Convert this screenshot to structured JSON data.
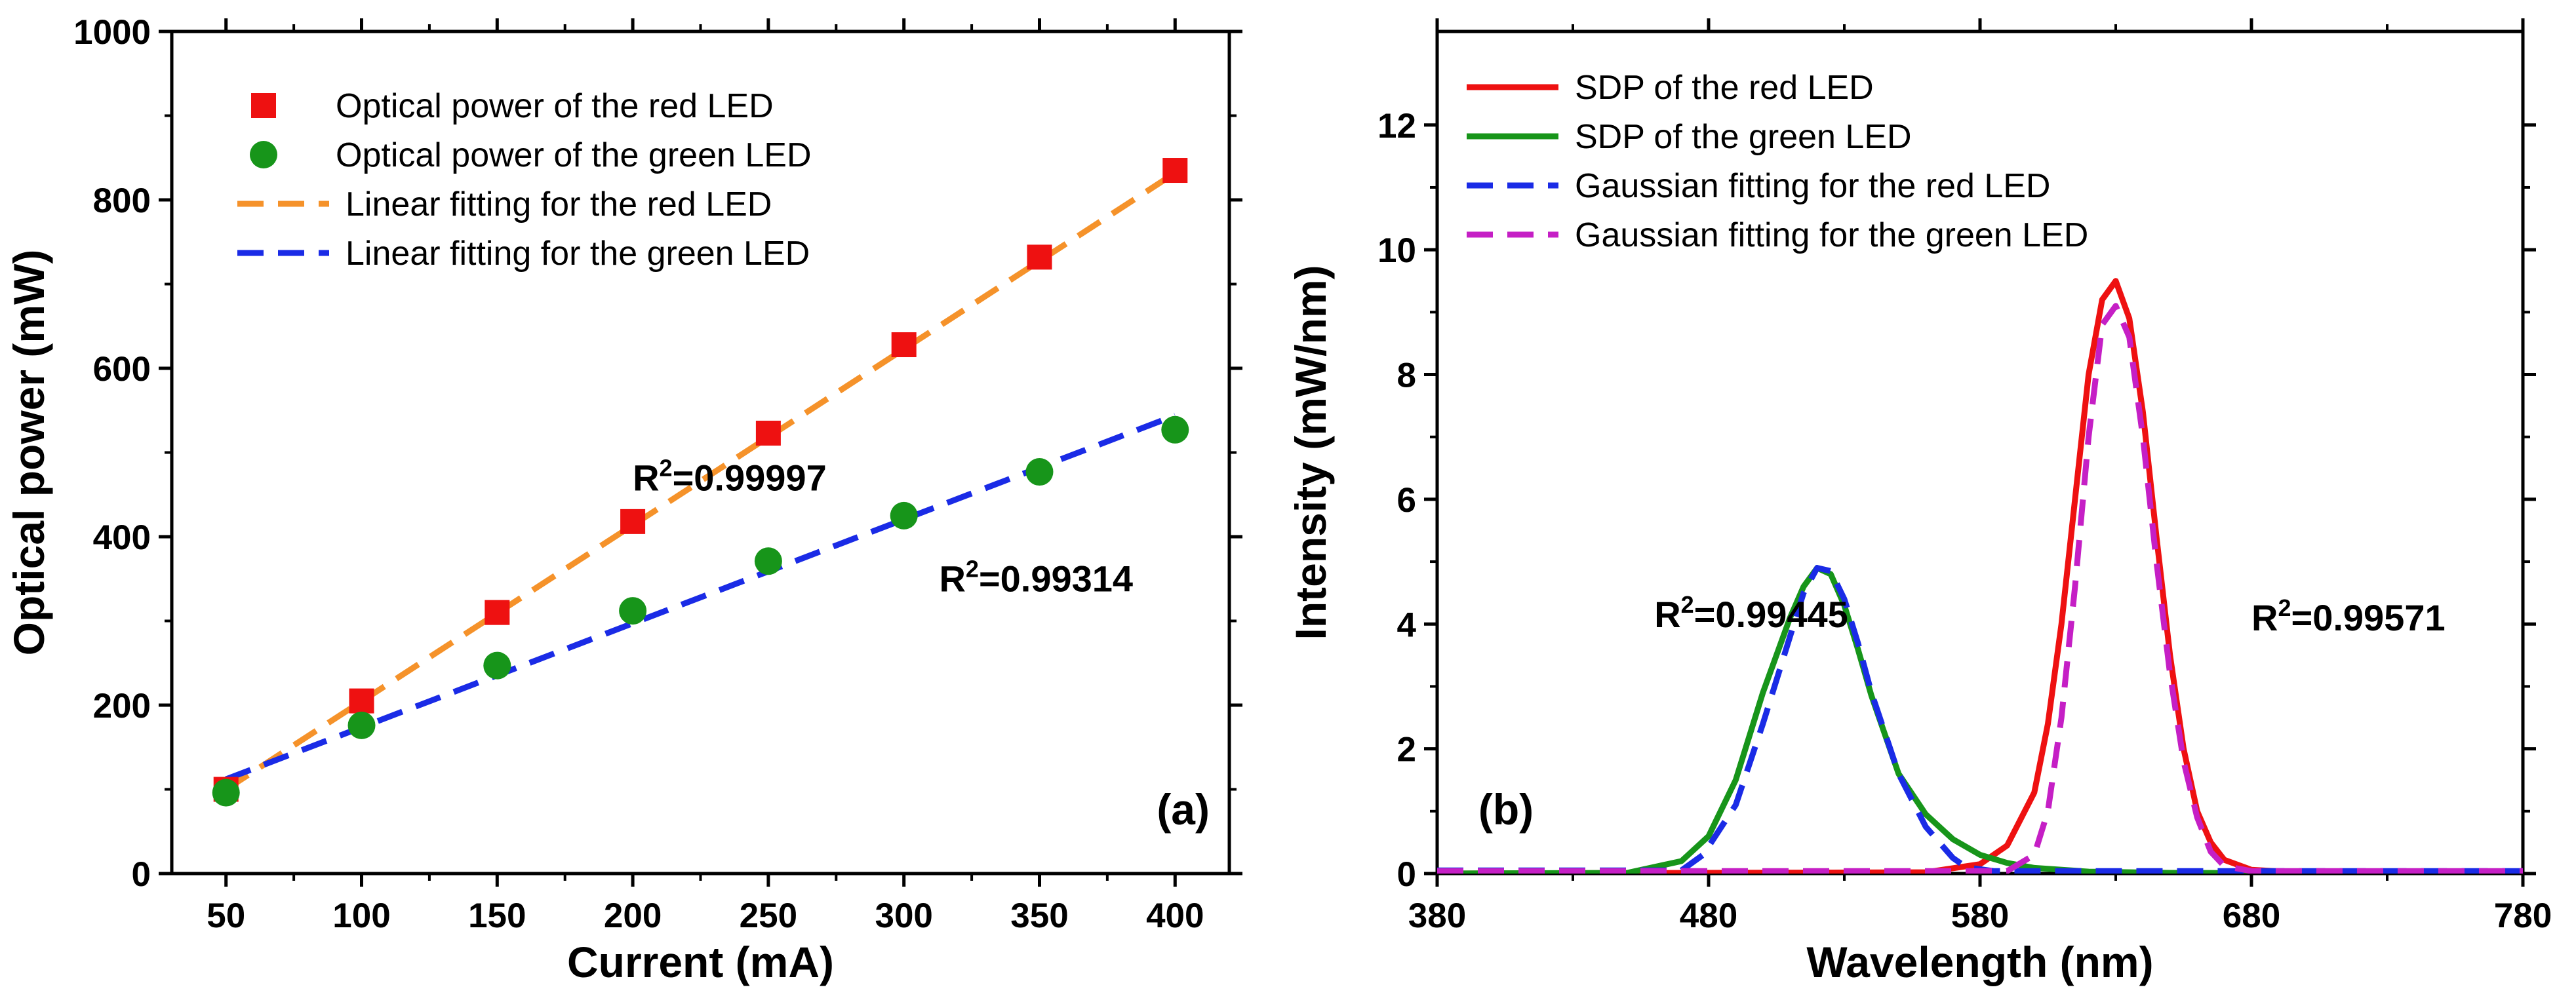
{
  "chart_data": [
    {
      "type": "scatter",
      "panel_label": "(a)",
      "xlabel": "Current (mA)",
      "ylabel": "Optical power (mW)",
      "xlim": [
        30,
        420
      ],
      "ylim": [
        0,
        1000
      ],
      "xticks": [
        50,
        100,
        150,
        200,
        250,
        300,
        350,
        400
      ],
      "yticks": [
        0,
        200,
        400,
        600,
        800,
        1000
      ],
      "legend_position": "top-left",
      "series": [
        {
          "name": "Optical power of the red LED",
          "marker": "square",
          "color": "#ee1111",
          "x": [
            50,
            100,
            150,
            200,
            250,
            300,
            350,
            400
          ],
          "y": [
            100,
            205,
            310,
            418,
            523,
            628,
            732,
            835
          ]
        },
        {
          "name": "Optical power of the green LED",
          "marker": "circle",
          "color": "#17951a",
          "x": [
            50,
            100,
            150,
            200,
            250,
            300,
            350,
            400
          ],
          "y": [
            96,
            176,
            247,
            312,
            371,
            425,
            477,
            527
          ]
        },
        {
          "name": "Linear fitting for the red LED",
          "line": "dashed",
          "color": "#f5922a",
          "x": [
            50,
            400
          ],
          "y": [
            100,
            832
          ]
        },
        {
          "name": "Linear fitting for the green LED",
          "line": "dashed",
          "color": "#1a2be6",
          "x": [
            50,
            400
          ],
          "y": [
            112,
            544
          ]
        }
      ],
      "annotations": [
        {
          "base": "R",
          "sup": "2",
          "value": "=0.99997",
          "x": 200,
          "y": 455
        },
        {
          "base": "R",
          "sup": "2",
          "value": "=0.99314",
          "x": 313,
          "y": 335
        }
      ]
    },
    {
      "type": "line",
      "panel_label": "(b)",
      "xlabel": "Wavelength (nm)",
      "ylabel": "Intensity (mW/nm)",
      "xlim": [
        380,
        780
      ],
      "ylim": [
        0,
        13.5
      ],
      "xticks": [
        380,
        480,
        580,
        680,
        780
      ],
      "yticks": [
        0,
        2,
        4,
        6,
        8,
        10,
        12
      ],
      "legend_position": "top-left",
      "series": [
        {
          "name": "SDP of the red LED",
          "line": "solid",
          "color": "#ee1111",
          "x": [
            380,
            560,
            580,
            590,
            600,
            605,
            610,
            615,
            620,
            625,
            630,
            635,
            640,
            645,
            650,
            655,
            660,
            665,
            670,
            680,
            700,
            780
          ],
          "y": [
            0,
            0.02,
            0.15,
            0.45,
            1.3,
            2.4,
            4.0,
            6.0,
            8.0,
            9.2,
            9.5,
            8.9,
            7.4,
            5.4,
            3.5,
            2.0,
            1.0,
            0.5,
            0.22,
            0.06,
            0.01,
            0
          ]
        },
        {
          "name": "SDP of the green LED",
          "line": "solid",
          "color": "#17951a",
          "x": [
            380,
            450,
            470,
            480,
            490,
            500,
            510,
            515,
            520,
            525,
            530,
            535,
            540,
            550,
            560,
            570,
            580,
            590,
            600,
            620,
            650,
            780
          ],
          "y": [
            0,
            0.01,
            0.2,
            0.6,
            1.5,
            2.9,
            4.1,
            4.6,
            4.9,
            4.8,
            4.3,
            3.6,
            2.85,
            1.6,
            0.95,
            0.55,
            0.3,
            0.17,
            0.09,
            0.03,
            0.01,
            0
          ]
        },
        {
          "name": "Gaussian fitting for the red LED",
          "line": "dashed",
          "color": "#1a2be6",
          "x": [
            380,
            470,
            478,
            490,
            500,
            510,
            515,
            520,
            525,
            530,
            535,
            540,
            550,
            560,
            570,
            575,
            585,
            780
          ],
          "y": [
            0.05,
            0.05,
            0.3,
            1.1,
            2.4,
            3.8,
            4.5,
            4.9,
            4.85,
            4.4,
            3.7,
            2.9,
            1.6,
            0.75,
            0.25,
            0.1,
            0.04,
            0.04
          ]
        },
        {
          "name": "Gaussian fitting for the green LED",
          "line": "dashed",
          "color": "#c51fc5",
          "x": [
            380,
            590,
            600,
            605,
            610,
            615,
            620,
            625,
            630,
            635,
            640,
            645,
            650,
            655,
            660,
            665,
            670,
            680,
            780
          ],
          "y": [
            0.04,
            0.04,
            0.3,
            1.0,
            2.5,
            4.6,
            7.0,
            8.8,
            9.1,
            8.6,
            7.0,
            5.0,
            3.2,
            1.8,
            0.9,
            0.35,
            0.12,
            0.04,
            0.04
          ]
        }
      ],
      "annotations": [
        {
          "base": "R",
          "sup": "2",
          "value": "=0.99445",
          "x": 460,
          "y": 3.95
        },
        {
          "base": "R",
          "sup": "2",
          "value": "=0.99571",
          "x": 680,
          "y": 3.9
        }
      ]
    }
  ]
}
